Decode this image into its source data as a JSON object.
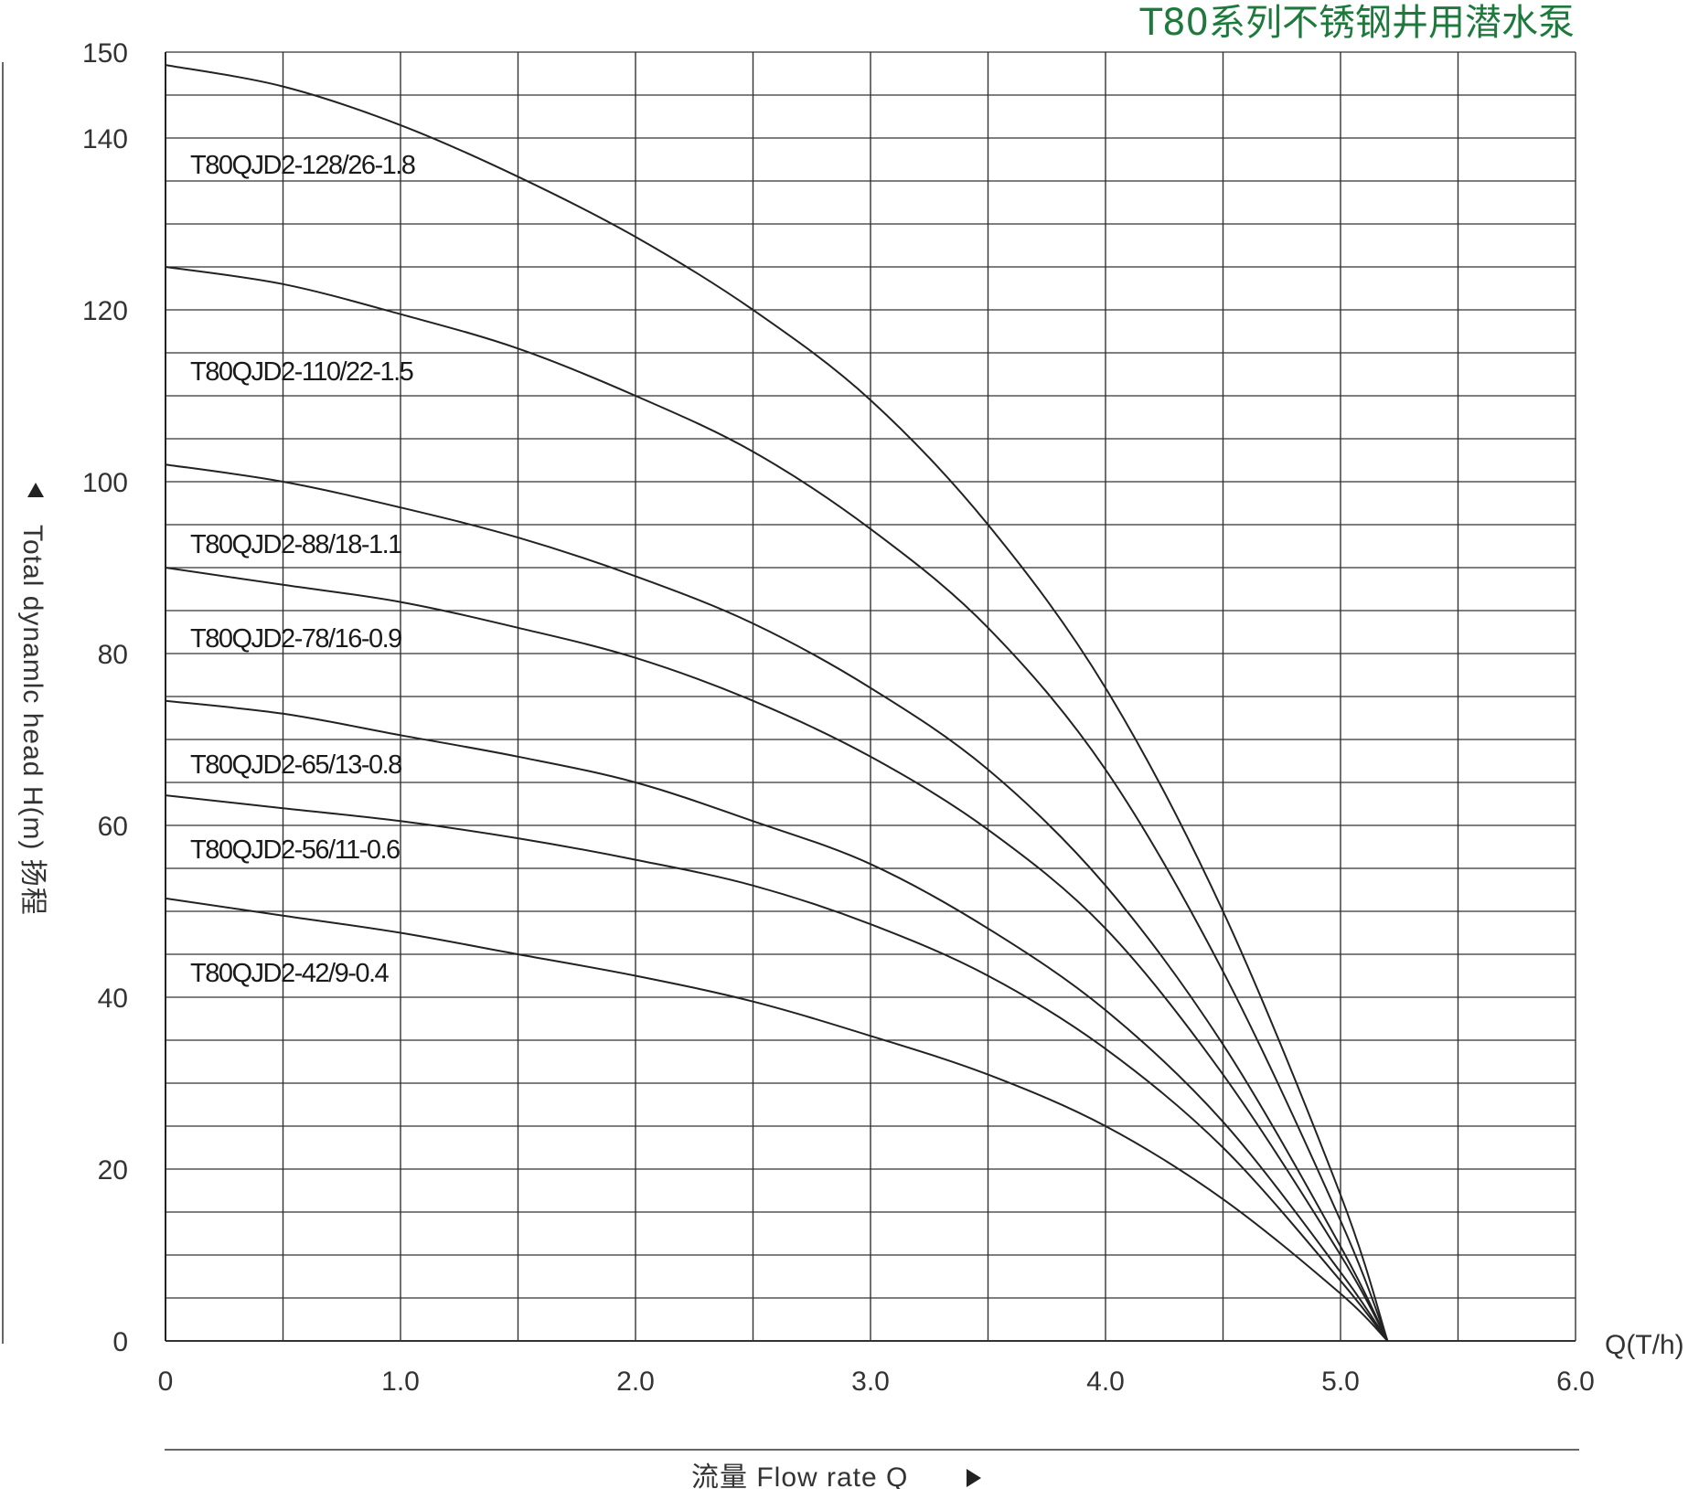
{
  "chart_data": {
    "type": "line",
    "title": "T80系列不锈钢井用潜水泵",
    "title_color": "#1e7a3c",
    "xlabel": "流量  Flow rate Q",
    "ylabel": "Total dynamlc head H(m) 扬程",
    "x_unit_label": "Q(T/h)",
    "xlim": [
      0,
      6.0
    ],
    "ylim": [
      0,
      150
    ],
    "x_ticks": [
      "0",
      "1.0",
      "2.0",
      "3.0",
      "4.0",
      "5.0",
      "6.0"
    ],
    "y_ticks": [
      "0",
      "20",
      "40",
      "60",
      "80",
      "100",
      "120",
      "140",
      "150"
    ],
    "grid": true,
    "series": [
      {
        "name": "T80QJD2-128/26-1.8",
        "points": [
          [
            0,
            148.5
          ],
          [
            0.5,
            146
          ],
          [
            1.0,
            141.5
          ],
          [
            1.5,
            135.5
          ],
          [
            2.0,
            128.5
          ],
          [
            2.5,
            120
          ],
          [
            3.0,
            109.5
          ],
          [
            3.5,
            95
          ],
          [
            4.0,
            76
          ],
          [
            4.5,
            50
          ],
          [
            5.0,
            17
          ],
          [
            5.2,
            0
          ]
        ]
      },
      {
        "name": "T80QJD2-110/22-1.5",
        "points": [
          [
            0,
            125
          ],
          [
            0.5,
            123
          ],
          [
            1.0,
            119.5
          ],
          [
            1.5,
            115.5
          ],
          [
            2.0,
            110
          ],
          [
            2.5,
            103.5
          ],
          [
            3.0,
            94.5
          ],
          [
            3.5,
            83
          ],
          [
            4.0,
            66.5
          ],
          [
            4.5,
            43
          ],
          [
            5.0,
            14
          ],
          [
            5.2,
            0
          ]
        ]
      },
      {
        "name": "T80QJD2-88/18-1.1",
        "points": [
          [
            0,
            102
          ],
          [
            0.5,
            100
          ],
          [
            1.0,
            97
          ],
          [
            1.5,
            93.5
          ],
          [
            2.0,
            89
          ],
          [
            2.5,
            83.5
          ],
          [
            3.0,
            76
          ],
          [
            3.5,
            66.5
          ],
          [
            4.0,
            53
          ],
          [
            4.5,
            34.5
          ],
          [
            5.0,
            11
          ],
          [
            5.2,
            0
          ]
        ]
      },
      {
        "name": "T80QJD2-78/16-0.9",
        "points": [
          [
            0,
            90
          ],
          [
            0.5,
            88
          ],
          [
            1.0,
            86
          ],
          [
            1.5,
            83
          ],
          [
            2.0,
            79.5
          ],
          [
            2.5,
            74.5
          ],
          [
            3.0,
            68
          ],
          [
            3.5,
            59.5
          ],
          [
            4.0,
            48
          ],
          [
            4.5,
            31
          ],
          [
            5.0,
            10
          ],
          [
            5.2,
            0
          ]
        ]
      },
      {
        "name": "T80QJD2-65/13-0.8",
        "points": [
          [
            0,
            74.5
          ],
          [
            0.5,
            73
          ],
          [
            1.0,
            70.5
          ],
          [
            1.5,
            68
          ],
          [
            2.0,
            65
          ],
          [
            2.5,
            60.5
          ],
          [
            3.0,
            55.5
          ],
          [
            3.5,
            48
          ],
          [
            4.0,
            38.5
          ],
          [
            4.5,
            25.5
          ],
          [
            5.0,
            8
          ],
          [
            5.2,
            0
          ]
        ]
      },
      {
        "name": "T80QJD2-56/11-0.6",
        "points": [
          [
            0,
            63.5
          ],
          [
            0.5,
            62
          ],
          [
            1.0,
            60.5
          ],
          [
            1.5,
            58.5
          ],
          [
            2.0,
            56
          ],
          [
            2.5,
            53
          ],
          [
            3.0,
            48.5
          ],
          [
            3.5,
            42.5
          ],
          [
            4.0,
            34
          ],
          [
            4.5,
            22.5
          ],
          [
            5.0,
            7
          ],
          [
            5.2,
            0
          ]
        ]
      },
      {
        "name": "T80QJD2-42/9-0.4",
        "points": [
          [
            0,
            51.5
          ],
          [
            0.5,
            49.5
          ],
          [
            1.0,
            47.5
          ],
          [
            1.5,
            45
          ],
          [
            2.0,
            42.5
          ],
          [
            2.5,
            39.5
          ],
          [
            3.0,
            35.5
          ],
          [
            3.5,
            31
          ],
          [
            4.0,
            25
          ],
          [
            4.5,
            16.5
          ],
          [
            5.0,
            5.5
          ],
          [
            5.2,
            0
          ]
        ]
      }
    ]
  }
}
